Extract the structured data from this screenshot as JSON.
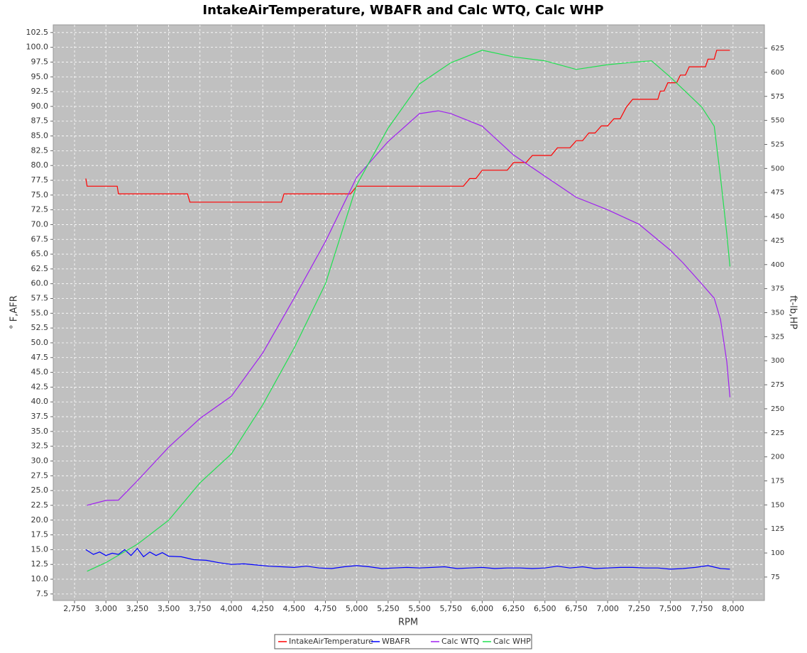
{
  "chart_data": {
    "type": "line",
    "title": "IntakeAirTemperature, WBAFR and Calc WTQ, Calc WHP",
    "x_label": "RPM",
    "y_label": "° F,AFR",
    "y2_label": "ft-lb,HP",
    "grid": true,
    "legend": "bottom",
    "xlim": [
      2580,
      8250
    ],
    "ylim": [
      6.4,
      103.8
    ],
    "y2lim": [
      50.6,
      649.4
    ],
    "xticks": [
      {
        "value": 2750,
        "label": "2,750"
      },
      {
        "value": 3000,
        "label": "3,000"
      },
      {
        "value": 3250,
        "label": "3,250"
      },
      {
        "value": 3500,
        "label": "3,500"
      },
      {
        "value": 3750,
        "label": "3,750"
      },
      {
        "value": 4000,
        "label": "4,000"
      },
      {
        "value": 4250,
        "label": "4,250"
      },
      {
        "value": 4500,
        "label": "4,500"
      },
      {
        "value": 4750,
        "label": "4,750"
      },
      {
        "value": 5000,
        "label": "5,000"
      },
      {
        "value": 5250,
        "label": "5,250"
      },
      {
        "value": 5500,
        "label": "5,500"
      },
      {
        "value": 5750,
        "label": "5,750"
      },
      {
        "value": 6000,
        "label": "6,000"
      },
      {
        "value": 6250,
        "label": "6,250"
      },
      {
        "value": 6500,
        "label": "6,500"
      },
      {
        "value": 6750,
        "label": "6,750"
      },
      {
        "value": 7000,
        "label": "7,000"
      },
      {
        "value": 7250,
        "label": "7,250"
      },
      {
        "value": 7500,
        "label": "7,500"
      },
      {
        "value": 7750,
        "label": "7,750"
      },
      {
        "value": 8000,
        "label": "8,000"
      }
    ],
    "yticks": [
      7.5,
      {
        "value": 10,
        "label": "10.0"
      },
      12.5,
      {
        "value": 15,
        "label": "15.0"
      },
      17.5,
      {
        "value": 20,
        "label": "20.0"
      },
      22.5,
      {
        "value": 25,
        "label": "25.0"
      },
      27.5,
      {
        "value": 30,
        "label": "30.0"
      },
      32.5,
      {
        "value": 35,
        "label": "35.0"
      },
      37.5,
      {
        "value": 40,
        "label": "40.0"
      },
      42.5,
      {
        "value": 45,
        "label": "45.0"
      },
      47.5,
      {
        "value": 50,
        "label": "50.0"
      },
      52.5,
      {
        "value": 55,
        "label": "55.0"
      },
      57.5,
      {
        "value": 60,
        "label": "60.0"
      },
      62.5,
      {
        "value": 65,
        "label": "65.0"
      },
      67.5,
      {
        "value": 70,
        "label": "70.0"
      },
      72.5,
      {
        "value": 75,
        "label": "75.0"
      },
      77.5,
      {
        "value": 80,
        "label": "80.0"
      },
      82.5,
      {
        "value": 85,
        "label": "85.0"
      },
      87.5,
      {
        "value": 90,
        "label": "90.0"
      },
      92.5,
      {
        "value": 95,
        "label": "95.0"
      },
      97.5,
      {
        "value": 100,
        "label": "100.0"
      },
      102.5
    ],
    "y2ticks": [
      75,
      100,
      125,
      150,
      175,
      200,
      225,
      250,
      275,
      300,
      325,
      350,
      375,
      400,
      425,
      450,
      475,
      500,
      525,
      550,
      575,
      600,
      625
    ],
    "series": [
      {
        "name": "IntakeAirTemperature",
        "color": "#ff0000",
        "x": [
          2840,
          2850,
          3090,
          3100,
          3650,
          3670,
          4400,
          4420,
          4950,
          5000,
          5850,
          5900,
          5950,
          6000,
          6200,
          6250,
          6350,
          6400,
          6550,
          6600,
          6700,
          6750,
          6800,
          6850,
          6900,
          6950,
          7000,
          7050,
          7100,
          7150,
          7200,
          7400,
          7420,
          7450,
          7480,
          7550,
          7580,
          7620,
          7650,
          7780,
          7800,
          7850,
          7870,
          7975
        ],
        "values": [
          77.8,
          76.5,
          76.5,
          75.2,
          75.2,
          73.8,
          73.8,
          75.2,
          75.2,
          76.5,
          76.5,
          77.8,
          77.8,
          79.2,
          79.2,
          80.5,
          80.5,
          81.7,
          81.7,
          83.0,
          83.0,
          84.2,
          84.2,
          85.5,
          85.5,
          86.7,
          86.7,
          87.9,
          87.9,
          89.9,
          91.2,
          91.2,
          92.6,
          92.6,
          94.0,
          94.0,
          95.3,
          95.3,
          96.7,
          96.7,
          98.0,
          98.0,
          99.5,
          99.5
        ]
      },
      {
        "name": "WBAFR",
        "color": "#0000ff",
        "x": [
          2840,
          2900,
          2950,
          3000,
          3050,
          3100,
          3150,
          3200,
          3250,
          3300,
          3350,
          3400,
          3450,
          3500,
          3600,
          3700,
          3800,
          3900,
          4000,
          4100,
          4200,
          4300,
          4400,
          4500,
          4600,
          4700,
          4800,
          4900,
          5000,
          5100,
          5200,
          5300,
          5400,
          5500,
          5600,
          5700,
          5800,
          5900,
          6000,
          6100,
          6200,
          6300,
          6400,
          6500,
          6600,
          6700,
          6800,
          6900,
          7000,
          7100,
          7200,
          7300,
          7400,
          7500,
          7600,
          7700,
          7800,
          7900,
          7975
        ],
        "values": [
          15.0,
          14.2,
          14.6,
          14.0,
          14.4,
          14.2,
          15.0,
          14.0,
          15.2,
          13.8,
          14.6,
          14.0,
          14.5,
          13.9,
          13.8,
          13.3,
          13.2,
          12.8,
          12.5,
          12.6,
          12.4,
          12.2,
          12.1,
          12.0,
          12.2,
          11.9,
          11.8,
          12.1,
          12.3,
          12.1,
          11.8,
          11.9,
          12.0,
          11.9,
          12.0,
          12.1,
          11.8,
          11.9,
          12.0,
          11.8,
          11.9,
          11.9,
          11.8,
          11.9,
          12.2,
          11.9,
          12.1,
          11.8,
          11.9,
          12.0,
          12.0,
          11.9,
          11.9,
          11.7,
          11.8,
          12.0,
          12.3,
          11.8,
          11.7
        ]
      },
      {
        "name": "Calc WTQ",
        "color": "#a020f0",
        "axis": "y2",
        "x": [
          2850,
          3000,
          3100,
          3250,
          3500,
          3750,
          4000,
          4250,
          4500,
          4750,
          5000,
          5250,
          5500,
          5650,
          5750,
          6000,
          6250,
          6500,
          6750,
          7000,
          7250,
          7500,
          7600,
          7750,
          7850,
          7900,
          7950,
          7975
        ],
        "values": [
          149.6,
          154.7,
          155,
          175,
          210,
          240,
          263,
          308,
          365,
          424,
          491,
          528,
          557,
          560,
          557,
          544,
          514,
          492,
          470,
          457,
          442,
          415,
          402,
          380,
          365,
          343,
          299,
          262
        ]
      },
      {
        "name": "Calc WHP",
        "color": "#20e050",
        "axis": "y2",
        "x": [
          2850,
          3000,
          3250,
          3500,
          3750,
          4000,
          4250,
          4500,
          4750,
          5000,
          5250,
          5500,
          5750,
          6000,
          6250,
          6500,
          6750,
          7000,
          7250,
          7350,
          7500,
          7750,
          7850,
          7900,
          7950,
          7975
        ],
        "values": [
          81,
          90,
          109,
          134,
          173,
          203,
          254,
          313,
          380,
          483,
          542,
          588,
          610,
          623,
          616,
          612,
          603,
          608,
          611,
          612,
          595,
          564,
          544,
          491,
          432,
          398
        ]
      }
    ]
  }
}
